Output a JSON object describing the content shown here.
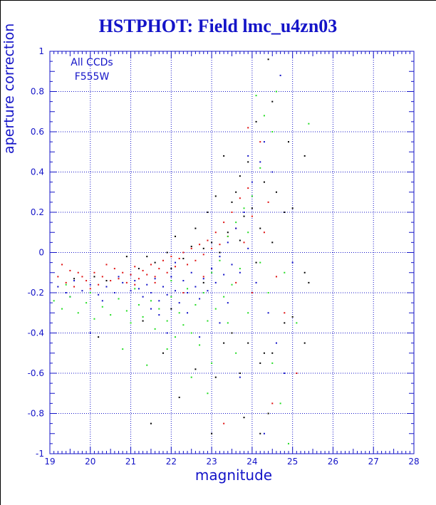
{
  "chart_data": {
    "type": "scatter",
    "title": "HSTPHOT: Field lmc_u4zn03",
    "xlabel": "magnitude",
    "ylabel": "aperture correction",
    "annotation_lines": [
      "All CCDs",
      "F555W"
    ],
    "xlim": [
      19,
      28
    ],
    "ylim": [
      -1,
      1
    ],
    "x_ticks": [
      "19",
      "20",
      "21",
      "22",
      "23",
      "24",
      "25",
      "26",
      "27",
      "28"
    ],
    "y_ticks": [
      "-1",
      "-0.8",
      "-0.6",
      "-0.4",
      "-0.2",
      "0",
      "0.2",
      "0.4",
      "0.6",
      "0.8",
      "1"
    ],
    "grid": true,
    "series_colors": {
      "black": "#000000",
      "red": "#e01010",
      "blue": "#1010c8",
      "green": "#22dd22"
    },
    "series": [
      {
        "color": "#000000",
        "points": [
          [
            19.6,
            -0.13
          ],
          [
            20.1,
            -0.12
          ],
          [
            20.4,
            -0.14
          ],
          [
            20.9,
            -0.02
          ],
          [
            21.2,
            -0.08
          ],
          [
            21.4,
            -0.02
          ],
          [
            21.6,
            -0.05
          ],
          [
            21.9,
            0.0
          ],
          [
            22.0,
            -0.08
          ],
          [
            22.1,
            0.08
          ],
          [
            22.3,
            -0.03
          ],
          [
            22.5,
            0.03
          ],
          [
            22.6,
            0.12
          ],
          [
            22.8,
            0.02
          ],
          [
            22.9,
            0.2
          ],
          [
            23.0,
            0.05
          ],
          [
            23.1,
            0.28
          ],
          [
            23.2,
            0.0
          ],
          [
            23.3,
            0.48
          ],
          [
            23.4,
            0.1
          ],
          [
            23.5,
            0.25
          ],
          [
            23.6,
            0.3
          ],
          [
            23.7,
            0.06
          ],
          [
            23.7,
            0.38
          ],
          [
            23.8,
            0.18
          ],
          [
            23.9,
            0.45
          ],
          [
            24.0,
            0.22
          ],
          [
            24.1,
            0.65
          ],
          [
            24.2,
            0.12
          ],
          [
            24.3,
            0.35
          ],
          [
            24.4,
            0.96
          ],
          [
            24.5,
            0.75
          ],
          [
            24.6,
            0.3
          ],
          [
            24.8,
            0.2
          ],
          [
            25.0,
            0.22
          ],
          [
            25.3,
            0.48
          ],
          [
            24.1,
            -0.05
          ],
          [
            24.2,
            -0.55
          ],
          [
            23.5,
            -0.4
          ],
          [
            23.7,
            -0.6
          ],
          [
            23.9,
            -0.45
          ],
          [
            24.3,
            -0.5
          ],
          [
            24.5,
            -0.5
          ],
          [
            24.8,
            -0.35
          ],
          [
            25.0,
            -0.32
          ],
          [
            25.3,
            -0.1
          ],
          [
            25.3,
            -0.45
          ],
          [
            24.4,
            -0.8
          ],
          [
            23.1,
            -0.62
          ],
          [
            22.6,
            -0.58
          ],
          [
            22.2,
            -0.72
          ],
          [
            21.8,
            -0.5
          ],
          [
            21.5,
            -0.85
          ],
          [
            23.8,
            -0.82
          ],
          [
            22.0,
            -0.28
          ],
          [
            23.3,
            -0.45
          ],
          [
            22.8,
            -0.15
          ],
          [
            24.5,
            0.05
          ],
          [
            24.9,
            0.55
          ],
          [
            25.4,
            -0.15
          ],
          [
            24.2,
            -0.9
          ],
          [
            23.0,
            -0.9
          ],
          [
            21.3,
            -0.34
          ],
          [
            20.2,
            -0.42
          ]
        ]
      },
      {
        "color": "#e01010",
        "points": [
          [
            19.2,
            -0.12
          ],
          [
            19.4,
            -0.15
          ],
          [
            19.5,
            -0.09
          ],
          [
            19.6,
            -0.17
          ],
          [
            19.8,
            -0.12
          ],
          [
            19.9,
            -0.14
          ],
          [
            20.1,
            -0.1
          ],
          [
            20.2,
            -0.16
          ],
          [
            20.3,
            -0.12
          ],
          [
            20.5,
            -0.14
          ],
          [
            20.6,
            -0.08
          ],
          [
            20.7,
            -0.13
          ],
          [
            20.8,
            -0.1
          ],
          [
            20.9,
            -0.15
          ],
          [
            21.0,
            -0.11
          ],
          [
            21.1,
            -0.07
          ],
          [
            21.2,
            -0.13
          ],
          [
            21.3,
            -0.09
          ],
          [
            21.4,
            -0.11
          ],
          [
            21.5,
            -0.06
          ],
          [
            21.6,
            -0.12
          ],
          [
            21.7,
            -0.08
          ],
          [
            21.8,
            -0.04
          ],
          [
            21.9,
            -0.1
          ],
          [
            22.0,
            -0.02
          ],
          [
            22.1,
            -0.07
          ],
          [
            22.2,
            -0.03
          ],
          [
            22.3,
            0.0
          ],
          [
            22.4,
            -0.06
          ],
          [
            22.5,
            0.02
          ],
          [
            22.6,
            -0.04
          ],
          [
            22.7,
            0.04
          ],
          [
            22.8,
            -0.01
          ],
          [
            22.9,
            0.06
          ],
          [
            23.0,
            0.02
          ],
          [
            23.1,
            0.1
          ],
          [
            23.2,
            0.04
          ],
          [
            23.3,
            0.15
          ],
          [
            23.4,
            0.08
          ],
          [
            23.5,
            0.2
          ],
          [
            23.6,
            0.12
          ],
          [
            23.7,
            0.27
          ],
          [
            23.8,
            0.05
          ],
          [
            23.9,
            0.32
          ],
          [
            24.0,
            0.18
          ],
          [
            24.2,
            0.55
          ],
          [
            24.3,
            0.1
          ],
          [
            24.4,
            0.25
          ],
          [
            24.6,
            -0.12
          ],
          [
            24.8,
            -0.3
          ],
          [
            25.1,
            -0.6
          ],
          [
            24.0,
            -0.2
          ],
          [
            23.6,
            -0.15
          ],
          [
            22.3,
            -0.2
          ],
          [
            21.1,
            -0.16
          ],
          [
            20.0,
            -0.18
          ],
          [
            19.3,
            -0.06
          ],
          [
            19.7,
            -0.1
          ],
          [
            20.4,
            -0.06
          ],
          [
            21.6,
            -0.15
          ],
          [
            22.8,
            -0.12
          ],
          [
            23.9,
            0.62
          ],
          [
            24.5,
            -0.75
          ],
          [
            23.3,
            -0.85
          ]
        ]
      },
      {
        "color": "#1010c8",
        "points": [
          [
            19.2,
            -0.17
          ],
          [
            19.4,
            -0.2
          ],
          [
            19.6,
            -0.14
          ],
          [
            19.8,
            -0.19
          ],
          [
            20.0,
            -0.16
          ],
          [
            20.2,
            -0.21
          ],
          [
            20.4,
            -0.17
          ],
          [
            20.6,
            -0.2
          ],
          [
            20.8,
            -0.15
          ],
          [
            21.0,
            -0.19
          ],
          [
            21.1,
            -0.14
          ],
          [
            21.2,
            -0.18
          ],
          [
            21.3,
            -0.22
          ],
          [
            21.4,
            -0.16
          ],
          [
            21.5,
            -0.2
          ],
          [
            21.6,
            -0.13
          ],
          [
            21.7,
            -0.24
          ],
          [
            21.8,
            -0.17
          ],
          [
            21.9,
            -0.21
          ],
          [
            22.0,
            -0.12
          ],
          [
            22.1,
            -0.19
          ],
          [
            22.2,
            -0.25
          ],
          [
            22.3,
            -0.14
          ],
          [
            22.4,
            -0.2
          ],
          [
            22.5,
            -0.1
          ],
          [
            22.6,
            -0.17
          ],
          [
            22.7,
            -0.23
          ],
          [
            22.8,
            -0.13
          ],
          [
            22.9,
            -0.19
          ],
          [
            23.0,
            -0.08
          ],
          [
            23.1,
            -0.15
          ],
          [
            23.2,
            -0.02
          ],
          [
            23.3,
            -0.11
          ],
          [
            23.4,
            0.05
          ],
          [
            23.5,
            -0.06
          ],
          [
            23.6,
            0.12
          ],
          [
            23.7,
            -0.1
          ],
          [
            23.8,
            0.2
          ],
          [
            23.9,
            0.02
          ],
          [
            24.0,
            0.35
          ],
          [
            24.1,
            -0.15
          ],
          [
            24.2,
            0.45
          ],
          [
            24.3,
            0.55
          ],
          [
            24.5,
            0.4
          ],
          [
            24.7,
            0.88
          ],
          [
            25.0,
            -0.05
          ],
          [
            24.4,
            -0.3
          ],
          [
            24.6,
            -0.45
          ],
          [
            23.2,
            -0.35
          ],
          [
            22.4,
            -0.3
          ],
          [
            21.5,
            -0.28
          ],
          [
            20.3,
            -0.24
          ],
          [
            21.9,
            -0.4
          ],
          [
            22.7,
            -0.42
          ],
          [
            23.4,
            -0.25
          ],
          [
            24.8,
            -0.6
          ],
          [
            19.5,
            -0.22
          ],
          [
            20.7,
            -0.12
          ],
          [
            21.7,
            -0.31
          ],
          [
            22.1,
            -0.05
          ],
          [
            23.7,
            -0.62
          ],
          [
            24.3,
            -0.9
          ],
          [
            20.0,
            -0.4
          ],
          [
            23.9,
            0.48
          ]
        ]
      },
      {
        "color": "#22dd22",
        "points": [
          [
            19.1,
            -0.24
          ],
          [
            19.3,
            -0.28
          ],
          [
            19.5,
            -0.22
          ],
          [
            19.7,
            -0.3
          ],
          [
            19.9,
            -0.25
          ],
          [
            20.1,
            -0.33
          ],
          [
            20.3,
            -0.27
          ],
          [
            20.5,
            -0.31
          ],
          [
            20.7,
            -0.23
          ],
          [
            20.9,
            -0.29
          ],
          [
            21.0,
            -0.35
          ],
          [
            21.2,
            -0.26
          ],
          [
            21.3,
            -0.32
          ],
          [
            21.5,
            -0.24
          ],
          [
            21.6,
            -0.38
          ],
          [
            21.7,
            -0.28
          ],
          [
            21.9,
            -0.34
          ],
          [
            22.0,
            -0.22
          ],
          [
            22.1,
            -0.42
          ],
          [
            22.2,
            -0.3
          ],
          [
            22.3,
            -0.36
          ],
          [
            22.4,
            -0.18
          ],
          [
            22.5,
            -0.4
          ],
          [
            22.6,
            -0.26
          ],
          [
            22.7,
            -0.46
          ],
          [
            22.8,
            -0.2
          ],
          [
            22.9,
            -0.34
          ],
          [
            23.0,
            -0.1
          ],
          [
            23.1,
            -0.28
          ],
          [
            23.2,
            -0.04
          ],
          [
            23.3,
            -0.22
          ],
          [
            23.4,
            0.08
          ],
          [
            23.5,
            -0.16
          ],
          [
            23.6,
            0.15
          ],
          [
            23.7,
            -0.08
          ],
          [
            23.8,
            0.22
          ],
          [
            23.9,
            0.1
          ],
          [
            24.0,
            0.28
          ],
          [
            24.1,
            0.78
          ],
          [
            24.2,
            0.42
          ],
          [
            24.3,
            0.68
          ],
          [
            24.5,
            0.6
          ],
          [
            24.6,
            0.8
          ],
          [
            25.4,
            0.64
          ],
          [
            24.4,
            -0.2
          ],
          [
            24.5,
            -0.55
          ],
          [
            24.7,
            -0.75
          ],
          [
            24.9,
            -0.95
          ],
          [
            23.6,
            -0.5
          ],
          [
            23.0,
            -0.55
          ],
          [
            22.5,
            -0.62
          ],
          [
            21.9,
            -0.48
          ],
          [
            21.4,
            -0.56
          ],
          [
            20.8,
            -0.48
          ],
          [
            23.9,
            -0.3
          ],
          [
            24.8,
            -0.1
          ],
          [
            19.4,
            -0.16
          ],
          [
            20.0,
            -0.2
          ],
          [
            21.1,
            -0.18
          ],
          [
            22.0,
            -0.14
          ],
          [
            22.9,
            -0.7
          ],
          [
            23.4,
            -0.35
          ],
          [
            24.2,
            -0.05
          ],
          [
            25.1,
            -0.35
          ]
        ]
      }
    ]
  }
}
